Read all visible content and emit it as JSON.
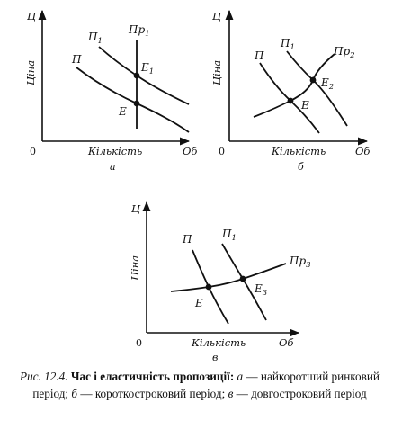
{
  "panels": [
    {
      "id": "a",
      "letter": "а",
      "y_axis_symbol": "Ц",
      "y_axis_label": "Ціна",
      "x_axis_label": "Кількість",
      "x_axis_unit": "Об",
      "origin": "0",
      "curve_labels": [
        {
          "main": "П",
          "sub": ""
        },
        {
          "main": "П",
          "sub": "1"
        },
        {
          "main": "Пр",
          "sub": "1"
        }
      ],
      "point_labels": [
        {
          "main": "E",
          "sub": ""
        },
        {
          "main": "E",
          "sub": "1"
        }
      ]
    },
    {
      "id": "b",
      "letter": "б",
      "y_axis_symbol": "Ц",
      "y_axis_label": "Ціна",
      "x_axis_label": "Кількість",
      "x_axis_unit": "Об",
      "origin": "0",
      "curve_labels": [
        {
          "main": "П",
          "sub": ""
        },
        {
          "main": "П",
          "sub": "1"
        },
        {
          "main": "Пр",
          "sub": "2"
        }
      ],
      "point_labels": [
        {
          "main": "E",
          "sub": ""
        },
        {
          "main": "E",
          "sub": "2"
        }
      ]
    },
    {
      "id": "c",
      "letter": "в",
      "y_axis_symbol": "Ц",
      "y_axis_label": "Ціна",
      "x_axis_label": "Кількість",
      "x_axis_unit": "Об",
      "origin": "0",
      "curve_labels": [
        {
          "main": "П",
          "sub": ""
        },
        {
          "main": "П",
          "sub": "1"
        },
        {
          "main": "Пр",
          "sub": "3"
        }
      ],
      "point_labels": [
        {
          "main": "E",
          "sub": ""
        },
        {
          "main": "E",
          "sub": "3"
        }
      ]
    }
  ],
  "caption": {
    "figure_ref": "Рис. 12.4.",
    "title": "Час і еластичність пропозиції:",
    "a_letter": "а",
    "a_text": "— найкоротший ринковий період;",
    "b_letter": "б",
    "b_text": "— короткостроковий період;",
    "c_letter": "в",
    "c_text": "— довгостроковий період"
  }
}
